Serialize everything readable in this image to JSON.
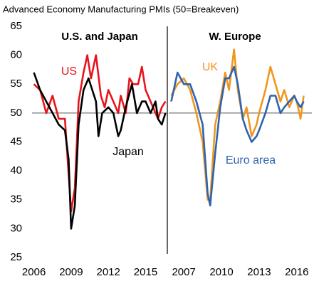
{
  "chart_data": [
    {
      "type": "line",
      "title": "Advanced Economy Manufacturing PMIs (50=Breakeven)",
      "panel_title": "U.S. and Japan",
      "ylim": [
        25,
        65
      ],
      "yticks": [
        25,
        30,
        35,
        40,
        45,
        50,
        55,
        60,
        65
      ],
      "hline": 50,
      "xlim": [
        2005.85,
        2016.75
      ],
      "xticks": [
        2006,
        2009,
        2012,
        2015
      ],
      "series": [
        {
          "name": "US",
          "color": "#e8141b",
          "x": [
            2006,
            2006.5,
            2007,
            2007.5,
            2008,
            2008.5,
            2008.9,
            2009.0,
            2009.3,
            2009.6,
            2010,
            2010.3,
            2010.6,
            2011,
            2011.4,
            2011.7,
            2012,
            2012.4,
            2012.8,
            2013,
            2013.4,
            2013.7,
            2014,
            2014.4,
            2014.7,
            2015,
            2015.4,
            2015.8,
            2016,
            2016.3,
            2016.6
          ],
          "values": [
            55,
            54,
            50,
            53,
            49,
            49,
            36,
            33,
            37,
            52,
            57,
            60,
            56,
            60,
            53,
            51,
            54,
            52,
            50,
            53,
            50,
            56,
            55,
            55,
            58,
            54,
            52,
            50,
            49,
            51,
            52
          ]
        },
        {
          "name": "Japan",
          "color": "#000000",
          "x": [
            2006,
            2006.5,
            2007,
            2007.5,
            2008,
            2008.5,
            2008.8,
            2009.0,
            2009.3,
            2009.6,
            2010,
            2010.4,
            2011,
            2011.2,
            2011.5,
            2012,
            2012.4,
            2012.8,
            2013,
            2013.4,
            2013.9,
            2014.3,
            2014.7,
            2015,
            2015.4,
            2015.8,
            2016,
            2016.3,
            2016.6
          ],
          "values": [
            57,
            54,
            52,
            50,
            48,
            47,
            42,
            30,
            34,
            48,
            54,
            56,
            52,
            46,
            50,
            51,
            50,
            46,
            47,
            51,
            55,
            50,
            52,
            52,
            50,
            52,
            49,
            48,
            50
          ]
        }
      ]
    },
    {
      "type": "line",
      "panel_title": "W. Europe",
      "ylim": [
        25,
        65
      ],
      "hline": 50,
      "xlim": [
        2005.8,
        2017.2
      ],
      "xticks": [
        2007,
        2010,
        2013,
        2016
      ],
      "series": [
        {
          "name": "UK",
          "color": "#f0961e",
          "x": [
            2006,
            2006.5,
            2007,
            2007.5,
            2008,
            2008.5,
            2008.9,
            2009.1,
            2009.5,
            2009.9,
            2010.3,
            2010.6,
            2011,
            2011.3,
            2011.7,
            2012,
            2012.4,
            2012.8,
            2013,
            2013.5,
            2013.9,
            2014.3,
            2014.7,
            2015,
            2015.4,
            2015.8,
            2016,
            2016.3,
            2016.55
          ],
          "values": [
            53,
            55,
            56,
            54,
            50,
            45,
            35,
            35,
            48,
            52,
            57,
            54,
            61,
            54,
            49,
            51,
            46,
            48,
            50,
            54,
            58,
            55,
            52,
            54,
            51,
            53,
            52,
            49,
            53
          ]
        },
        {
          "name": "Euro area",
          "color": "#2e64ae",
          "x": [
            2006,
            2006.5,
            2007,
            2007.5,
            2008,
            2008.5,
            2008.9,
            2009.1,
            2009.5,
            2009.9,
            2010.3,
            2010.6,
            2011,
            2011.3,
            2011.7,
            2012,
            2012.4,
            2012.8,
            2013,
            2013.5,
            2013.9,
            2014.3,
            2014.7,
            2015,
            2015.4,
            2015.8,
            2016,
            2016.3,
            2016.55
          ],
          "values": [
            52,
            57,
            55,
            55,
            52,
            48,
            36,
            34,
            43,
            51,
            56,
            56,
            58,
            55,
            49,
            47,
            45,
            46,
            47,
            50,
            53,
            53,
            50,
            51,
            52,
            53,
            52,
            51,
            52
          ]
        }
      ]
    }
  ]
}
